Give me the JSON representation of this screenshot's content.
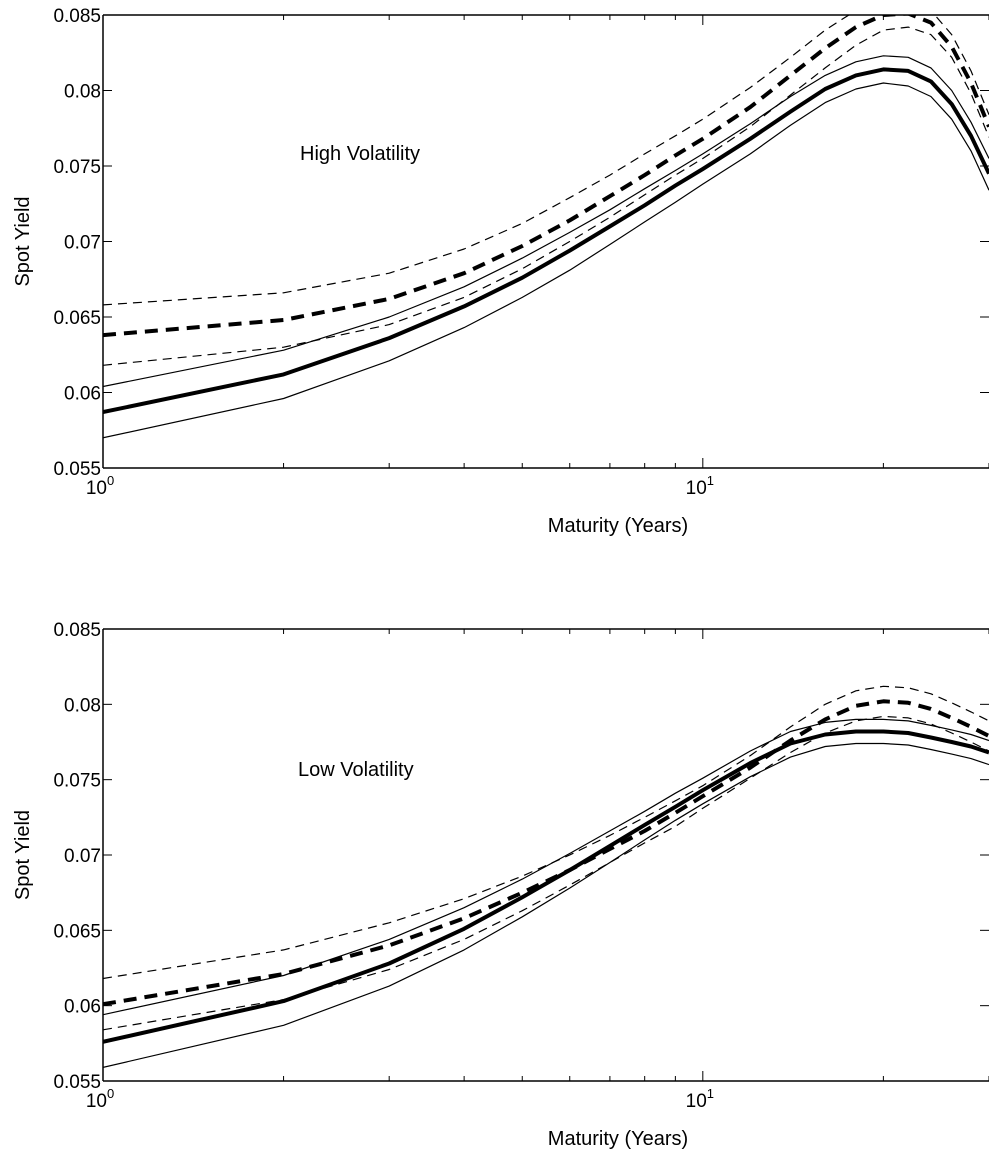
{
  "chart_data": [
    {
      "type": "line",
      "ylabel": "Spot Yield",
      "xlabel": "Maturity (Years)",
      "xscale": "log",
      "xlim": [
        1,
        30
      ],
      "ylim": [
        0.055,
        0.085
      ],
      "yticks": [
        "0.055",
        "0.06",
        "0.065",
        "0.07",
        "0.075",
        "0.08",
        "0.085"
      ],
      "xticks": [
        {
          "base": "10",
          "exp": "0"
        },
        {
          "base": "10",
          "exp": "1"
        }
      ],
      "annotation": "High Volatility",
      "grid": false,
      "x": [
        1,
        2,
        3,
        4,
        5,
        6,
        7,
        8,
        9,
        10,
        12,
        14,
        16,
        18,
        20,
        22,
        24,
        26,
        28,
        30
      ],
      "series": [
        {
          "style": "solid",
          "weight": "thick",
          "values": [
            0.0587,
            0.0612,
            0.0636,
            0.0657,
            0.0676,
            0.0694,
            0.071,
            0.0724,
            0.0737,
            0.0748,
            0.0768,
            0.0786,
            0.0801,
            0.081,
            0.0814,
            0.0813,
            0.0806,
            0.0791,
            0.077,
            0.0745
          ]
        },
        {
          "style": "solid",
          "weight": "thin",
          "values": [
            0.0604,
            0.0628,
            0.065,
            0.067,
            0.0689,
            0.0706,
            0.0721,
            0.0735,
            0.0747,
            0.0758,
            0.0778,
            0.0796,
            0.081,
            0.0819,
            0.0823,
            0.0822,
            0.0815,
            0.08,
            0.0779,
            0.0755
          ]
        },
        {
          "style": "solid",
          "weight": "thin",
          "values": [
            0.057,
            0.0596,
            0.0621,
            0.0643,
            0.0663,
            0.0681,
            0.0698,
            0.0713,
            0.0726,
            0.0738,
            0.0758,
            0.0777,
            0.0792,
            0.0801,
            0.0805,
            0.0803,
            0.0796,
            0.0781,
            0.076,
            0.0734
          ]
        },
        {
          "style": "dashed",
          "weight": "thick",
          "values": [
            0.0638,
            0.0648,
            0.0662,
            0.0679,
            0.0697,
            0.0714,
            0.073,
            0.0744,
            0.0757,
            0.0768,
            0.0789,
            0.081,
            0.0828,
            0.0842,
            0.085,
            0.0851,
            0.0845,
            0.0829,
            0.0805,
            0.0776
          ]
        },
        {
          "style": "dashed",
          "weight": "thin",
          "values": [
            0.0658,
            0.0666,
            0.0679,
            0.0695,
            0.0712,
            0.0729,
            0.0744,
            0.0758,
            0.077,
            0.0781,
            0.0802,
            0.0822,
            0.084,
            0.0853,
            0.086,
            0.086,
            0.0853,
            0.0837,
            0.0813,
            0.0784
          ]
        },
        {
          "style": "dashed",
          "weight": "thin",
          "values": [
            0.0618,
            0.063,
            0.0645,
            0.0663,
            0.0682,
            0.07,
            0.0716,
            0.0731,
            0.0744,
            0.0755,
            0.0776,
            0.0797,
            0.0815,
            0.083,
            0.084,
            0.0842,
            0.0837,
            0.0822,
            0.0798,
            0.0769
          ]
        }
      ]
    },
    {
      "type": "line",
      "ylabel": "Spot Yield",
      "xlabel": "Maturity (Years)",
      "xscale": "log",
      "xlim": [
        1,
        30
      ],
      "ylim": [
        0.055,
        0.085
      ],
      "yticks": [
        "0.055",
        "0.06",
        "0.065",
        "0.07",
        "0.075",
        "0.08",
        "0.085"
      ],
      "xticks": [
        {
          "base": "10",
          "exp": "0"
        },
        {
          "base": "10",
          "exp": "1"
        }
      ],
      "annotation": "Low Volatility",
      "grid": false,
      "x": [
        1,
        2,
        3,
        4,
        5,
        6,
        7,
        8,
        9,
        10,
        12,
        14,
        16,
        18,
        20,
        22,
        24,
        26,
        28,
        30
      ],
      "series": [
        {
          "style": "solid",
          "weight": "thick",
          "values": [
            0.0576,
            0.0603,
            0.0628,
            0.0651,
            0.0672,
            0.069,
            0.0706,
            0.072,
            0.0732,
            0.0743,
            0.0761,
            0.0774,
            0.078,
            0.0782,
            0.0782,
            0.0781,
            0.0778,
            0.0775,
            0.0772,
            0.0768
          ]
        },
        {
          "style": "solid",
          "weight": "thin",
          "values": [
            0.0594,
            0.062,
            0.0644,
            0.0665,
            0.0684,
            0.0701,
            0.0716,
            0.0729,
            0.0741,
            0.0751,
            0.0769,
            0.0782,
            0.0788,
            0.079,
            0.079,
            0.0789,
            0.0786,
            0.0783,
            0.078,
            0.0776
          ]
        },
        {
          "style": "solid",
          "weight": "thin",
          "values": [
            0.0559,
            0.0587,
            0.0613,
            0.0637,
            0.0659,
            0.0678,
            0.0695,
            0.071,
            0.0723,
            0.0734,
            0.0752,
            0.0765,
            0.0772,
            0.0774,
            0.0774,
            0.0773,
            0.077,
            0.0767,
            0.0764,
            0.076
          ]
        },
        {
          "style": "dashed",
          "weight": "thick",
          "values": [
            0.0601,
            0.0621,
            0.064,
            0.0658,
            0.0675,
            0.069,
            0.0704,
            0.0716,
            0.0728,
            0.0739,
            0.0758,
            0.0776,
            0.079,
            0.0799,
            0.0802,
            0.0801,
            0.0797,
            0.0791,
            0.0785,
            0.0779
          ]
        },
        {
          "style": "dashed",
          "weight": "thin",
          "values": [
            0.0618,
            0.0637,
            0.0655,
            0.0671,
            0.0686,
            0.07,
            0.0713,
            0.0725,
            0.0736,
            0.0746,
            0.0766,
            0.0785,
            0.08,
            0.0809,
            0.0812,
            0.0811,
            0.0807,
            0.0801,
            0.0795,
            0.0789
          ]
        },
        {
          "style": "dashed",
          "weight": "thin",
          "values": [
            0.0584,
            0.0604,
            0.0624,
            0.0644,
            0.0663,
            0.068,
            0.0695,
            0.0708,
            0.0719,
            0.0731,
            0.0751,
            0.0768,
            0.0781,
            0.0789,
            0.0792,
            0.0791,
            0.0787,
            0.0781,
            0.0775,
            0.0769
          ]
        }
      ]
    }
  ]
}
